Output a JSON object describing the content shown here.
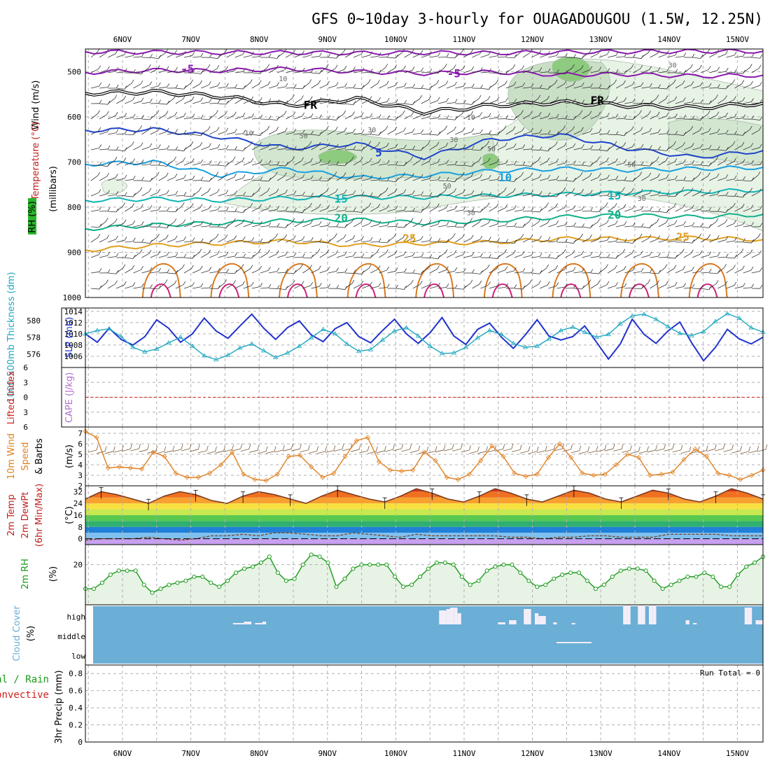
{
  "title": "GFS 0~10day 3-hourly for OUAGADOUGOU (1.5W, 12.25N)",
  "colors": {
    "wind": "#000000",
    "temperature": "#c02020",
    "rh": "#1a9a1a",
    "thickness": "#20a8c0",
    "slp": "#2233cc",
    "lifted": "#d02020",
    "cape": "#b070d0",
    "wind10": "#e08020",
    "rh2m": "#1a9a1a",
    "cloud": "#6baed6",
    "cloud_box": "#f4eef8",
    "precip_total": "#1a9a1a",
    "precip_conv": "#d02020"
  },
  "chart_data": [
    {
      "type": "line",
      "panel": "upper-air",
      "title": "Wind / Temperature / RH",
      "ylabel": "millibars",
      "ylim": [
        1000,
        450
      ],
      "yticks": [
        "500",
        "600",
        "700",
        "800",
        "900",
        "1000"
      ],
      "yaxis_labels": {
        "wind": "Wind (m/s)",
        "temperature": "Temperature (°C)",
        "rh": "RH (%)",
        "levels": "(millibars)"
      },
      "categories": [
        "6NOV",
        "7NOV",
        "8NOV",
        "9NOV",
        "10NOV",
        "11NOV",
        "12NOV",
        "13NOV",
        "14NOV",
        "15NOV"
      ],
      "isotherm_labels": [
        {
          "text": "-5",
          "day": 0.95,
          "p": 495,
          "color": "#8b1ab0"
        },
        {
          "text": "-5",
          "day": 4.85,
          "p": 505,
          "color": "#8b1ab0"
        },
        {
          "text": "FR",
          "day": 2.75,
          "p": 575,
          "color": "#000000"
        },
        {
          "text": "FR",
          "day": 6.95,
          "p": 565,
          "color": "#000000"
        },
        {
          "text": "5",
          "day": 3.75,
          "p": 680,
          "color": "#1f44cc"
        },
        {
          "text": "10",
          "day": 5.6,
          "p": 735,
          "color": "#1aa0e0"
        },
        {
          "text": "15",
          "day": 3.2,
          "p": 782,
          "color": "#10b5b5"
        },
        {
          "text": "15",
          "day": 7.2,
          "p": 775,
          "color": "#10b5b5"
        },
        {
          "text": "20",
          "day": 3.2,
          "p": 825,
          "color": "#12b08a"
        },
        {
          "text": "20",
          "day": 7.2,
          "p": 818,
          "color": "#12b08a"
        },
        {
          "text": "25",
          "day": 4.2,
          "p": 870,
          "color": "#e0a020"
        },
        {
          "text": "25",
          "day": 8.2,
          "p": 867,
          "color": "#e0a020"
        }
      ],
      "rh_labels": [
        {
          "text": "10",
          "day": 2.35,
          "p": 515
        },
        {
          "text": "10",
          "day": 1.85,
          "p": 635
        },
        {
          "text": "10",
          "day": 5.1,
          "p": 600
        },
        {
          "text": "50",
          "day": 2.65,
          "p": 641
        },
        {
          "text": "30",
          "day": 3.65,
          "p": 628
        },
        {
          "text": "30",
          "day": 4.85,
          "p": 650
        },
        {
          "text": "50",
          "day": 5.4,
          "p": 670
        },
        {
          "text": "50",
          "day": 4.75,
          "p": 752
        },
        {
          "text": "30",
          "day": 5.1,
          "p": 812
        },
        {
          "text": "30",
          "day": 8.05,
          "p": 485
        },
        {
          "text": "50",
          "day": 7.45,
          "p": 705
        },
        {
          "text": "30",
          "day": 7.6,
          "p": 780
        }
      ],
      "isotherms": [
        {
          "name": "-10",
          "color": "#8b1ab0",
          "values": [
            456,
            457,
            458,
            458,
            459,
            458,
            459,
            457,
            456,
            455,
            455
          ]
        },
        {
          "name": "-5",
          "color": "#8b1ab0",
          "values": [
            502,
            497,
            498,
            494,
            500,
            504,
            501,
            507,
            506,
            510,
            508
          ]
        },
        {
          "name": "FR",
          "color": "#000000",
          "values": [
            548,
            545,
            555,
            575,
            560,
            590,
            575,
            568,
            575,
            580,
            570
          ]
        },
        {
          "name": "5",
          "color": "#1f44cc",
          "values": [
            630,
            628,
            645,
            670,
            660,
            690,
            650,
            640,
            670,
            690,
            675
          ]
        },
        {
          "name": "10",
          "color": "#1aa0e0",
          "values": [
            705,
            700,
            730,
            715,
            735,
            730,
            720,
            715,
            718,
            715,
            712
          ]
        },
        {
          "name": "15",
          "color": "#10b5b5",
          "values": [
            785,
            782,
            785,
            780,
            778,
            778,
            775,
            772,
            768,
            766,
            762
          ]
        },
        {
          "name": "20",
          "color": "#12b08a",
          "values": [
            848,
            840,
            835,
            830,
            828,
            835,
            830,
            822,
            818,
            822,
            816
          ]
        },
        {
          "name": "25",
          "color": "#e0a020",
          "values": [
            895,
            885,
            880,
            875,
            885,
            880,
            878,
            870,
            870,
            868,
            872
          ]
        }
      ]
    },
    {
      "type": "line",
      "panel": "thickness-slp",
      "ylabel_left": "1000-500mb Thickness (dm)",
      "ylabel_right": "SLP (mb)",
      "left_ticks": [
        "580",
        "578",
        "576"
      ],
      "right_ticks": [
        "1014",
        "1012",
        "1010",
        "1008",
        "1006"
      ],
      "ylim_slp": [
        1004,
        1014
      ],
      "series": [
        {
          "name": "SLP",
          "color": "#2233cc",
          "values": [
            1010,
            1008.5,
            1011,
            1009,
            1008,
            1009.5,
            1012.5,
            1011,
            1008.5,
            1010,
            1012.8,
            1010.5,
            1009.2,
            1011.4,
            1013.5,
            1011,
            1009,
            1011.1,
            1012.3,
            1009.8,
            1008.6,
            1010.9,
            1012,
            1009.5,
            1008.4,
            1010.6,
            1012.6,
            1010,
            1008.3,
            1010.2,
            1012.9,
            1009.6,
            1008.1,
            1010.8,
            1011.9,
            1009.4,
            1007.4,
            1009.8,
            1012.5,
            1009.6,
            1008.9,
            1009.5,
            1011.4,
            1008.5,
            1005.5,
            1008.2,
            1012.6,
            1009.9,
            1008.3,
            1010.5,
            1012.1,
            1008.4,
            1005.2,
            1007.6,
            1010.8,
            1009.1,
            1008.2,
            1009.4
          ]
        },
        {
          "name": "Thickness",
          "color": "#20a8c0",
          "values": [
            1010,
            1010.6,
            1010.9,
            1009.5,
            1007.6,
            1006.8,
            1007.3,
            1008.4,
            1009.4,
            1007.8,
            1006.1,
            1005.4,
            1006.2,
            1007.5,
            1008.2,
            1007,
            1005.8,
            1006.6,
            1007.8,
            1009.3,
            1010.8,
            1010,
            1008.2,
            1006.9,
            1007.2,
            1008.9,
            1010.5,
            1011.1,
            1009.6,
            1007.8,
            1006.5,
            1006.6,
            1007.6,
            1009.3,
            1010.6,
            1009.9,
            1008.3,
            1007.6,
            1007.8,
            1009.1,
            1010.6,
            1011.2,
            1010.3,
            1009.4,
            1009.9,
            1011.8,
            1013.2,
            1013.5,
            1012.6,
            1011.3,
            1010.1,
            1009.7,
            1010.4,
            1012.2,
            1013.6,
            1012.8,
            1011.1,
            1010.3
          ]
        }
      ]
    },
    {
      "type": "line",
      "panel": "instability",
      "ylabel_left": "Lifted Index",
      "ylabel_right": "CAPE (J/kg)",
      "yticks": [
        "6",
        "3",
        "0",
        "3",
        "6"
      ],
      "series": [
        {
          "name": "Lifted Index zero line",
          "color": "#d02020",
          "values": [
            0,
            0
          ]
        }
      ]
    },
    {
      "type": "line",
      "panel": "wind10m",
      "ylabel": "10m Wind Speed & Barbs (m/s)",
      "yticks": [
        "7",
        "6",
        "5",
        "4",
        "3",
        "2"
      ],
      "ylim": [
        2,
        7.6
      ],
      "series": [
        {
          "name": "10m wind speed",
          "color": "#e08020",
          "values": [
            7.2,
            6.6,
            3.7,
            3.8,
            3.7,
            3.6,
            5.2,
            4.8,
            3.2,
            2.8,
            2.8,
            3.2,
            4.0,
            5.2,
            3.1,
            2.6,
            2.5,
            3.1,
            4.8,
            4.9,
            3.8,
            2.8,
            3.2,
            4.8,
            6.3,
            6.6,
            4.3,
            3.5,
            3.4,
            3.5,
            5.2,
            4.4,
            2.8,
            2.6,
            3.1,
            4.4,
            5.8,
            4.8,
            3.2,
            2.9,
            3.1,
            4.7,
            6.0,
            4.7,
            3.2,
            3.0,
            3.1,
            4.0,
            5.0,
            4.7,
            3.0,
            3.1,
            3.3,
            4.5,
            5.5,
            4.8,
            3.2,
            3.0,
            2.6,
            3.0,
            3.5
          ]
        }
      ]
    },
    {
      "type": "area",
      "panel": "temperature2m",
      "ylabel": "2m Temp / 2m DewPt (6hr Min/Max) (°C)",
      "yticks": [
        "32",
        "24",
        "16",
        "8",
        "0"
      ],
      "ylim": [
        -4,
        36
      ],
      "series": [
        {
          "name": "2m Temp",
          "color": "#c0401a",
          "values": [
            27,
            32,
            30,
            27,
            24,
            29,
            32,
            30,
            26,
            24,
            29,
            32,
            30,
            27,
            24,
            29,
            33,
            30,
            27,
            25,
            29,
            34,
            31,
            27,
            25,
            29,
            34,
            31,
            27,
            25,
            29,
            33,
            31,
            27,
            25,
            29,
            33,
            31,
            27,
            25,
            29,
            34,
            31,
            27
          ]
        },
        {
          "name": "2m DewPt",
          "color": "#7a4a30",
          "values": [
            -1,
            0,
            0,
            0,
            1,
            0,
            -1,
            0,
            2,
            2,
            3,
            2,
            4,
            4,
            3,
            2,
            2,
            4,
            3,
            2,
            1,
            3,
            2,
            2,
            2,
            2,
            2,
            1,
            1,
            0,
            1,
            1,
            2,
            2,
            1,
            1,
            1,
            3,
            3,
            3,
            3,
            2,
            2,
            2
          ]
        }
      ]
    },
    {
      "type": "area",
      "panel": "rh2m",
      "ylabel": "2m RH (%)",
      "yticks": [
        "20"
      ],
      "ylim": [
        0,
        30
      ],
      "series": [
        {
          "name": "2m RH",
          "color": "#1a9a1a",
          "values": [
            8,
            8,
            11,
            15,
            17,
            17,
            17,
            10,
            6,
            8,
            10,
            11,
            12,
            14,
            14,
            11,
            9,
            12,
            16,
            18,
            19,
            21,
            24,
            16,
            12,
            13,
            20,
            25,
            24,
            21,
            9,
            13,
            18,
            20,
            20,
            20,
            20,
            14,
            9,
            10,
            14,
            18,
            21,
            21,
            20,
            14,
            10,
            12,
            17,
            19,
            20,
            20,
            16,
            12,
            9,
            10,
            13,
            15,
            16,
            16,
            12,
            8,
            10,
            14,
            17,
            18,
            18,
            17,
            12,
            8,
            10,
            12,
            14,
            14,
            16,
            14,
            9,
            9,
            15,
            19,
            21,
            24
          ]
        }
      ]
    },
    {
      "type": "bar",
      "panel": "cloud-cover",
      "ylabel": "Cloud Cover (%)",
      "yticks": [
        "high",
        "middle",
        "low"
      ],
      "series": [
        {
          "name": "high cloud",
          "values": [
            0,
            0,
            0,
            0,
            0,
            0,
            0,
            0,
            0,
            0,
            0,
            0,
            0,
            0,
            0,
            0,
            0,
            0,
            0,
            0,
            0,
            0,
            0,
            0,
            0,
            0,
            0,
            0,
            0,
            0,
            0,
            0,
            0,
            0,
            0,
            0,
            0,
            0,
            2,
            2,
            2,
            4,
            4,
            0,
            2,
            2,
            4,
            0,
            0,
            0,
            0,
            0,
            0,
            0,
            0,
            0,
            0,
            0,
            0,
            0,
            0,
            0,
            0,
            0,
            0,
            0,
            0,
            0,
            0,
            0,
            0,
            0,
            0,
            0,
            0,
            0,
            0,
            0,
            0,
            0,
            0,
            0,
            0,
            0,
            0,
            0,
            0,
            0,
            0,
            0,
            0,
            0,
            0,
            0,
            20,
            20,
            22,
            24,
            24,
            16,
            0,
            0,
            0,
            0,
            0,
            0,
            0,
            0,
            0,
            0,
            3,
            3,
            0,
            6,
            6,
            0,
            0,
            22,
            22,
            0,
            16,
            12,
            12,
            0,
            0,
            3,
            0,
            0,
            0,
            0,
            2,
            0,
            0,
            0,
            0,
            0,
            0,
            0,
            0,
            0,
            0,
            0,
            0,
            0,
            28,
            28,
            0,
            0,
            28,
            28,
            0,
            28,
            28,
            0,
            0,
            0,
            0,
            0,
            0,
            0,
            0,
            6,
            0,
            2,
            0,
            0,
            0,
            0,
            0,
            0,
            0,
            0,
            0,
            0,
            0,
            0,
            0,
            24,
            24,
            0,
            6,
            6
          ]
        },
        {
          "name": "mid cloud",
          "values": [
            0
          ]
        }
      ]
    },
    {
      "type": "bar",
      "panel": "precipitation",
      "ylabel": "3hr Precip (mm)",
      "ylim": [
        0,
        0.9
      ],
      "yticks": [
        "0.8",
        "0.6",
        "0.4",
        "0.2",
        "0"
      ],
      "legend": {
        "total": "Total / Rain",
        "convective": "Convective"
      },
      "run_total": "Run Total = 0",
      "series": [
        {
          "name": "total",
          "values": []
        },
        {
          "name": "convective",
          "values": []
        }
      ]
    }
  ]
}
